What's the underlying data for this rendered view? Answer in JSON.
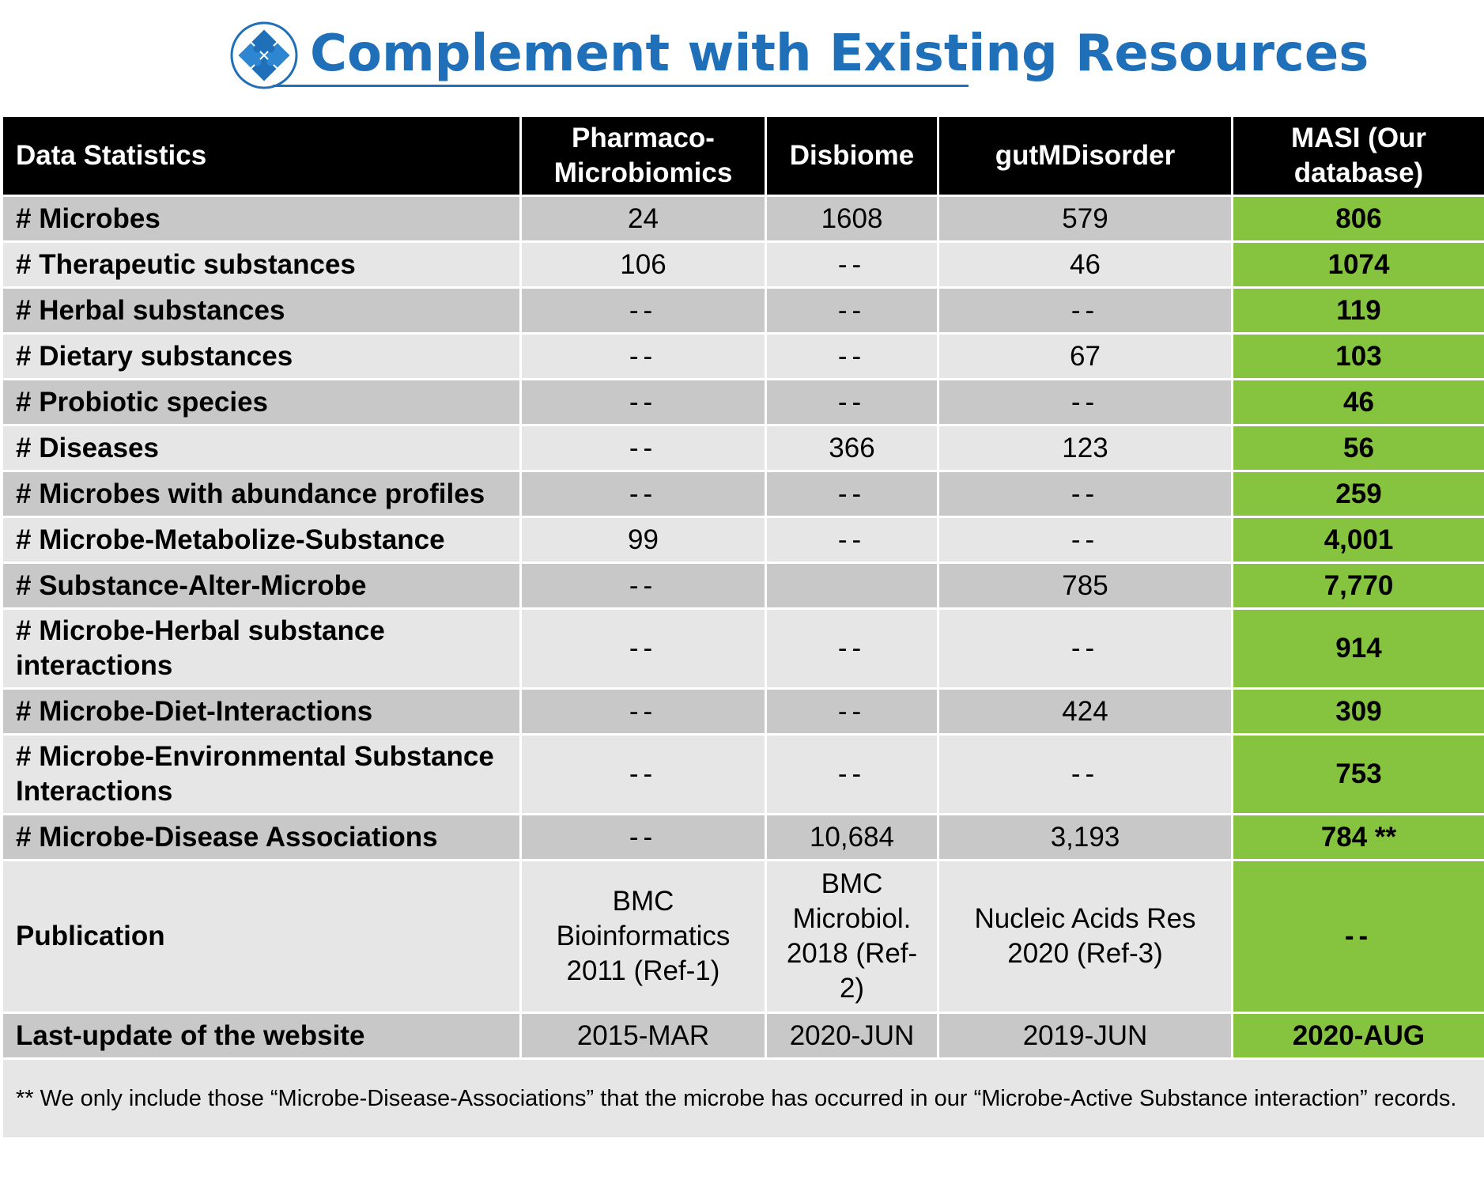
{
  "header": {
    "title": "Complement with Existing Resources",
    "icon": "puzzle-icon",
    "accent_color": "#1f70b8"
  },
  "table": {
    "columns": [
      "Data Statistics",
      "Pharmaco-\nMicrobiomics",
      "Disbiome",
      "gutMDisorder",
      "MASI (Our\ndatabase)"
    ],
    "rows": [
      {
        "label": "# Microbes",
        "values": [
          "24",
          "1608",
          "579",
          "806"
        ]
      },
      {
        "label": "# Therapeutic substances",
        "values": [
          "106",
          "--",
          "46",
          "1074"
        ]
      },
      {
        "label": "# Herbal substances",
        "values": [
          "--",
          "--",
          "--",
          "119"
        ]
      },
      {
        "label": "# Dietary substances",
        "values": [
          "--",
          "--",
          "67",
          "103"
        ]
      },
      {
        "label": "# Probiotic species",
        "values": [
          "--",
          "--",
          "--",
          "46"
        ]
      },
      {
        "label": "# Diseases",
        "values": [
          "--",
          "366",
          "123",
          "56"
        ]
      },
      {
        "label": "# Microbes with abundance profiles",
        "values": [
          "--",
          "--",
          "--",
          "259"
        ]
      },
      {
        "label": "# Microbe-Metabolize-Substance",
        "values": [
          "99",
          "--",
          "--",
          "4,001"
        ]
      },
      {
        "label": "# Substance-Alter-Microbe",
        "values": [
          "--",
          "",
          "785",
          "7,770"
        ]
      },
      {
        "label": "# Microbe-Herbal substance interactions",
        "values": [
          "--",
          "--",
          "--",
          "914"
        ]
      },
      {
        "label": "# Microbe-Diet-Interactions",
        "values": [
          "--",
          "--",
          "424",
          "309"
        ]
      },
      {
        "label": "# Microbe-Environmental Substance Interactions",
        "values": [
          "--",
          "--",
          "--",
          "753"
        ]
      },
      {
        "label": "# Microbe-Disease Associations",
        "values": [
          "--",
          "10,684",
          "3,193",
          "784 **"
        ]
      },
      {
        "label": "Publication",
        "values": [
          "BMC Bioinformatics 2011 (Ref-1)",
          "BMC Microbiol. 2018 (Ref-2)",
          "Nucleic Acids Res 2020 (Ref-3)",
          "--"
        ]
      },
      {
        "label": "Last-update of the website",
        "values": [
          "2015-MAR",
          "2020-JUN",
          "2019-JUN",
          "2020-AUG"
        ]
      }
    ],
    "footnote": "** We only include those “Microbe-Disease-Associations” that the microbe has occurred in our “Microbe-Active Substance interaction” records.",
    "highlight_color": "#86c440"
  }
}
